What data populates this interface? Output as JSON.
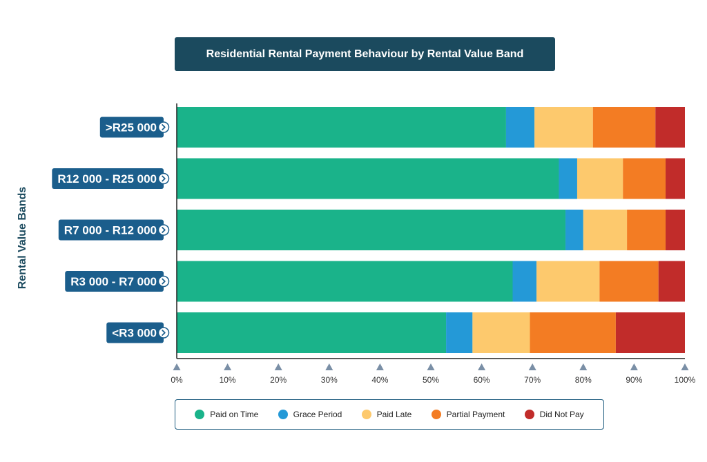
{
  "chart_data": {
    "type": "bar",
    "orientation": "horizontal",
    "stacked": true,
    "title": "Residential Rental Payment Behaviour by Rental Value Band",
    "ylabel": "Rental Value Bands",
    "xlabel": "",
    "xlim": [
      0,
      100
    ],
    "x_ticks": [
      "0%",
      "10%",
      "20%",
      "30%",
      "40%",
      "50%",
      "60%",
      "70%",
      "80%",
      "90%",
      "100%"
    ],
    "categories": [
      ">R25 000",
      "R12 000 - R25 000",
      "R7 000 - R12 000",
      "R3 000 - R7 000",
      "<R3 000"
    ],
    "series": [
      {
        "name": "Paid on Time",
        "color": "#1ab38a",
        "values": [
          64.8,
          75.2,
          76.5,
          66.1,
          53.0
        ]
      },
      {
        "name": "Grace Period",
        "color": "#2499d7",
        "values": [
          5.6,
          3.6,
          3.5,
          4.7,
          5.2
        ]
      },
      {
        "name": "Paid Late",
        "color": "#fdc96d",
        "values": [
          11.5,
          9.0,
          8.6,
          12.4,
          11.3
        ]
      },
      {
        "name": "Partial Payment",
        "color": "#f37c23",
        "values": [
          12.3,
          8.4,
          7.6,
          11.6,
          16.9
        ]
      },
      {
        "name": "Did Not Pay",
        "color": "#c12c2a",
        "values": [
          5.8,
          3.8,
          3.8,
          5.2,
          13.6
        ]
      }
    ],
    "legend_position": "bottom",
    "grid": false
  },
  "colors": {
    "title_bg": "#1b4a5e",
    "label_bg": "#1b5e8c",
    "axis": "#222222",
    "tick_marker": "#7a8fa6"
  }
}
